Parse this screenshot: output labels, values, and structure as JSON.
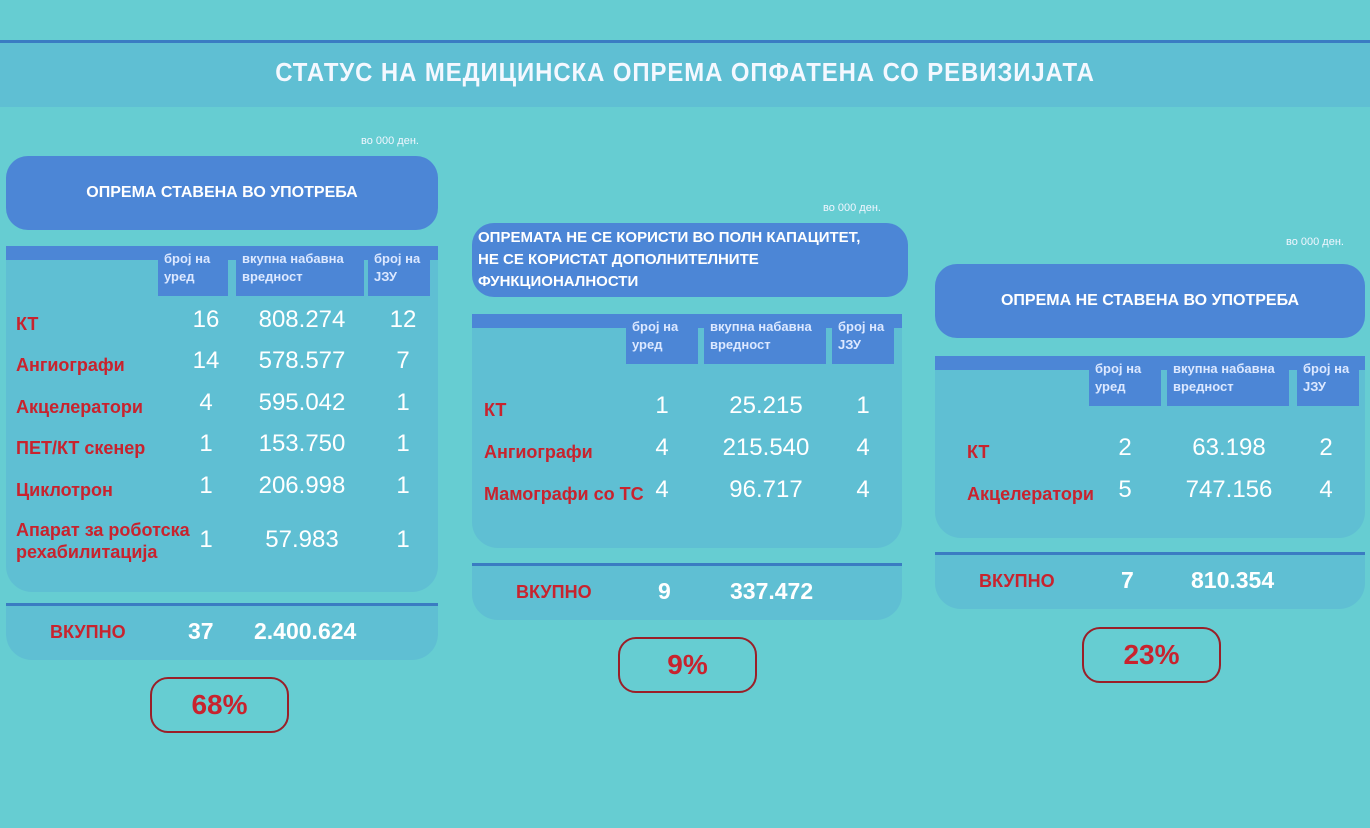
{
  "title": "СТАТУС НА МЕДИЦИНСКА ОПРЕМА ОПФАТЕНА СО РЕВИЗИЈАТА",
  "panels": [
    {
      "unit": "во 000 ден.",
      "heading": [
        "ОПРЕМА СТАВЕНА ВО УПОТРЕБА"
      ],
      "columns": [
        "број на уред",
        "вкупна набавна вредност",
        "број на ЈЗУ"
      ],
      "rows": [
        {
          "label": "КТ",
          "count": "16",
          "value": "808.274",
          "jzu": "12"
        },
        {
          "label": "Ангиографи",
          "count": "14",
          "value": "578.577",
          "jzu": "7"
        },
        {
          "label": "Акцелератори",
          "count": "4",
          "value": "595.042",
          "jzu": "1"
        },
        {
          "label": "ПЕТ/КТ скенер",
          "count": "1",
          "value": "153.750",
          "jzu": "1"
        },
        {
          "label": "Циклотрон",
          "count": "1",
          "value": "206.998",
          "jzu": "1"
        },
        {
          "label": "Апарат за роботска",
          "label2": "рехабилитација",
          "count": "1",
          "value": "57.983",
          "jzu": "1"
        }
      ],
      "total": {
        "label": "ВКУПНО",
        "count": "37",
        "value": "2.400.624"
      },
      "percent": "68%"
    },
    {
      "unit": "во 000 ден.",
      "heading": [
        "ОПРЕМАТА НЕ СЕ КОРИСТИ ВО ПОЛН КАПАЦИТЕТ,",
        "НЕ СЕ КОРИСТАТ ДОПОЛНИТЕЛНИТЕ ФУНКЦИОНАЛНОСТИ"
      ],
      "columns": [
        "број на уред",
        "вкупна набавна вредност",
        "број на ЈЗУ"
      ],
      "rows": [
        {
          "label": "КТ",
          "count": "1",
          "value": "25.215",
          "jzu": "1"
        },
        {
          "label": "Ангиографи",
          "count": "4",
          "value": "215.540",
          "jzu": "4"
        },
        {
          "label": "Мамографи со ТС",
          "count": "4",
          "value": "96.717",
          "jzu": "4"
        }
      ],
      "total": {
        "label": "ВКУПНО",
        "count": "9",
        "value": "337.472"
      },
      "percent": "9%"
    },
    {
      "unit": "во 000 ден.",
      "heading": [
        "ОПРЕМА НЕ СТАВЕНА ВО УПОТРЕБА"
      ],
      "columns": [
        "број на уред",
        "вкупна набавна вредност",
        "број на ЈЗУ"
      ],
      "rows": [
        {
          "label": "КТ",
          "count": "2",
          "value": "63.198",
          "jzu": "2"
        },
        {
          "label": "Акцелератори",
          "count": "5",
          "value": "747.156",
          "jzu": "4"
        }
      ],
      "total": {
        "label": "ВКУПНО",
        "count": "7",
        "value": "810.354"
      },
      "percent": "23%"
    }
  ]
}
